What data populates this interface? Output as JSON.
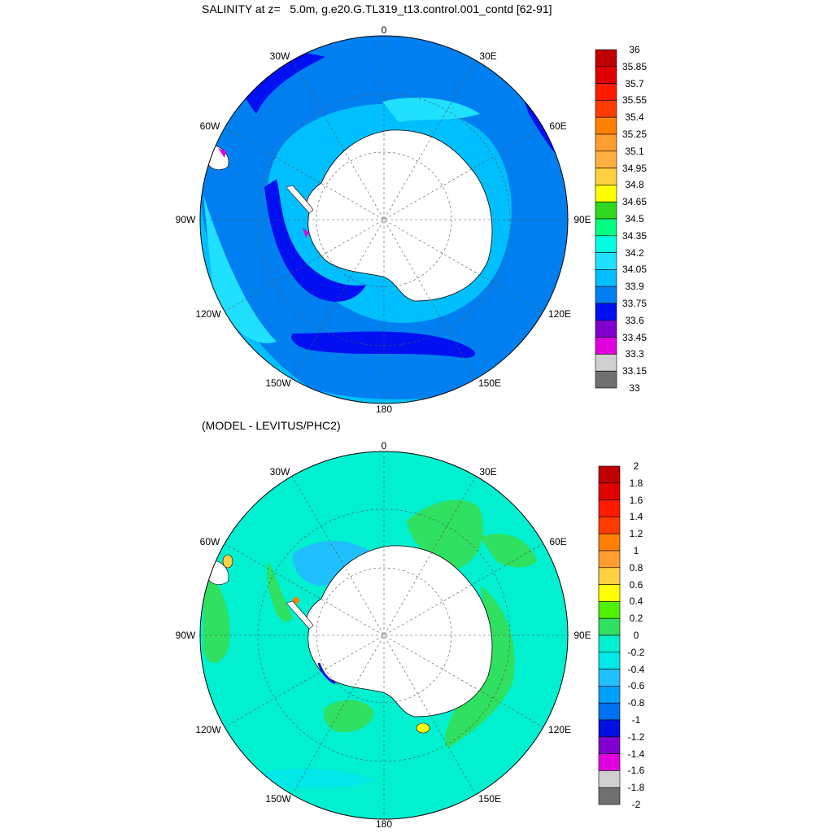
{
  "top": {
    "title": "SALINITY at z=   5.0m, g.e20.G.TL319_t13.control.001_contd [62-91]",
    "lon_labels": {
      "n": "0",
      "nw": "30W",
      "ne": "30E",
      "wnw": "60W",
      "ene": "60E",
      "w": "90W",
      "e": "90E",
      "wsw": "120W",
      "ese": "120E",
      "ssw": "150W",
      "sse": "150E",
      "s": "180"
    },
    "colorbar": {
      "labels": [
        "36",
        "35.85",
        "35.7",
        "35.55",
        "35.4",
        "35.25",
        "35.1",
        "34.95",
        "34.8",
        "34.65",
        "34.5",
        "34.35",
        "34.2",
        "34.05",
        "33.9",
        "33.75",
        "33.6",
        "33.45",
        "33.3",
        "33.15",
        "33"
      ],
      "colors": [
        "#c00000",
        "#e00000",
        "#ff1a00",
        "#ff3c00",
        "#ff8000",
        "#ff9d30",
        "#ffb040",
        "#ffd040",
        "#ffff00",
        "#30d820",
        "#00ff80",
        "#00ffe0",
        "#20e0ff",
        "#00bfff",
        "#0080f0",
        "#0010f0",
        "#8000d0",
        "#e000e0",
        "#d0d0d0",
        "#707070"
      ]
    }
  },
  "bottom": {
    "title": "(MODEL - LEVITUS/PHC2)",
    "lon_labels": {
      "n": "0",
      "nw": "30W",
      "ne": "30E",
      "wnw": "60W",
      "ene": "60E",
      "w": "90W",
      "e": "90E",
      "wsw": "120W",
      "ese": "120E",
      "ssw": "150W",
      "sse": "150E",
      "s": "180"
    },
    "colorbar": {
      "labels": [
        "2",
        "1.8",
        "1.6",
        "1.4",
        "1.2",
        "1",
        "0.8",
        "0.6",
        "0.4",
        "0.2",
        "0",
        "-0.2",
        "-0.4",
        "-0.6",
        "-0.8",
        "-1",
        "-1.2",
        "-1.4",
        "-1.6",
        "-1.8",
        "-2"
      ],
      "colors": [
        "#c00000",
        "#e00000",
        "#ff1a00",
        "#ff3c00",
        "#ff8000",
        "#ff9d30",
        "#ffd040",
        "#ffff00",
        "#50f000",
        "#30e060",
        "#00f0d0",
        "#00e8e8",
        "#20c0ff",
        "#00a0ff",
        "#0070f0",
        "#0010e0",
        "#8000d0",
        "#e000e0",
        "#d0d0d0",
        "#707070"
      ]
    }
  }
}
